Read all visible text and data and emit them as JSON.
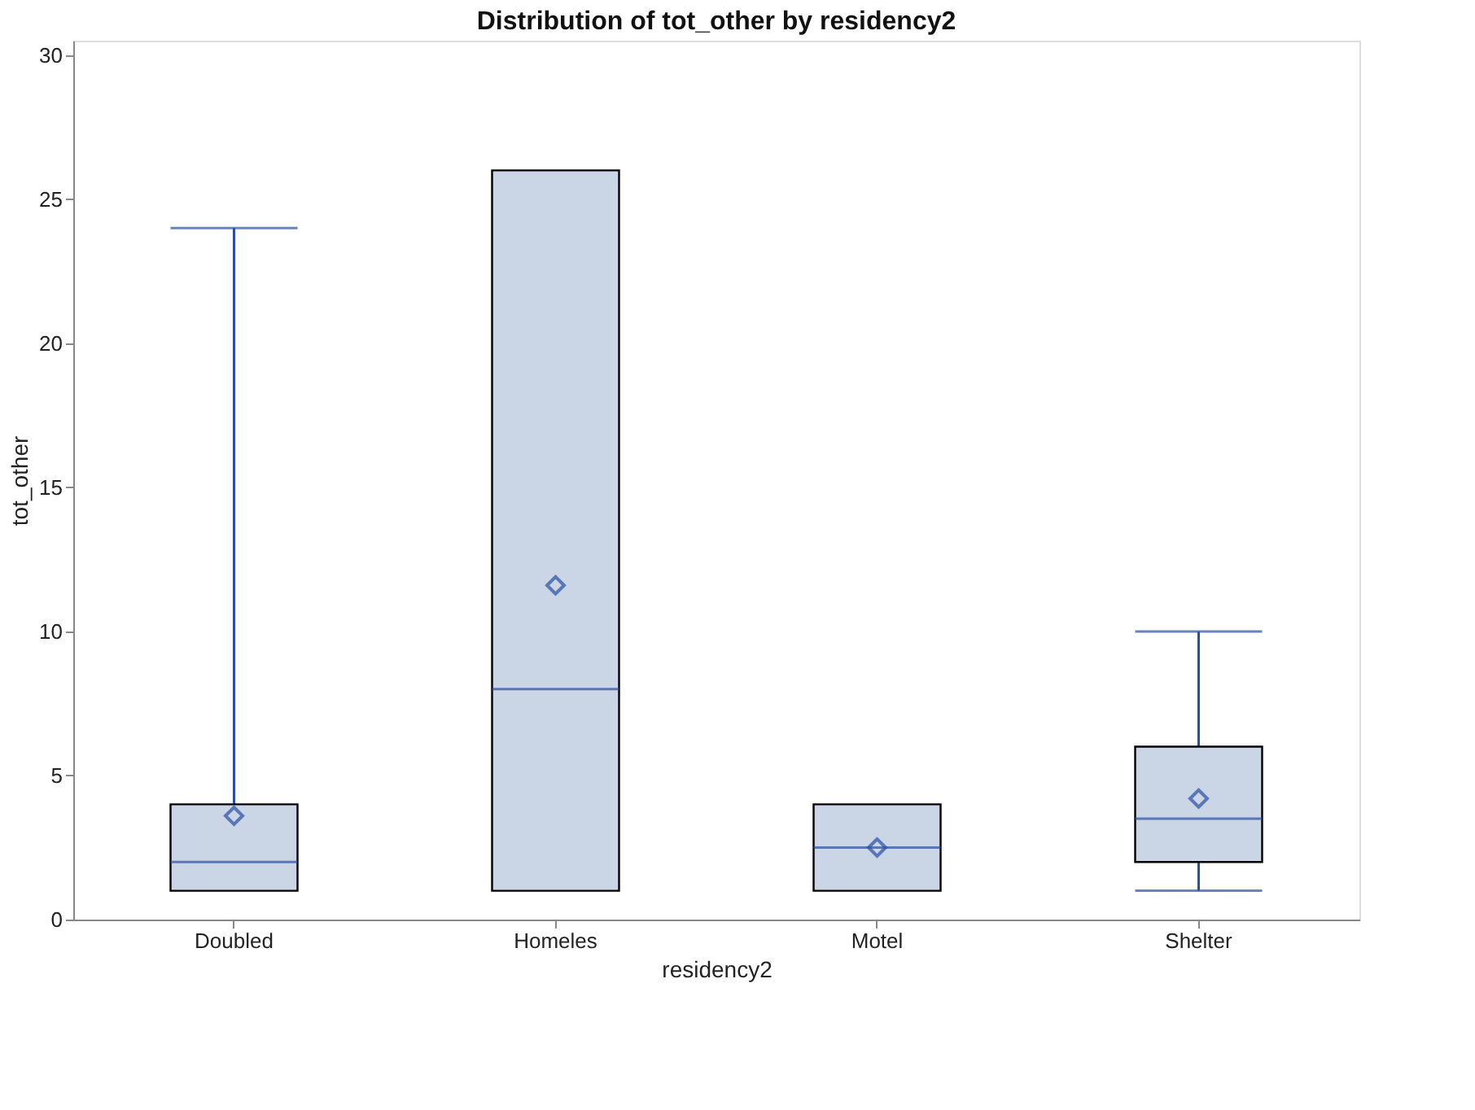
{
  "chart_data": {
    "type": "box",
    "title": "Distribution of tot_other by residency2",
    "xlabel": "residency2",
    "ylabel": "tot_other",
    "categories": [
      "Doubled",
      "Homeles",
      "Motel",
      "Shelter"
    ],
    "color": "#cad5e5",
    "boxes": [
      {
        "low": 1,
        "q1": 1,
        "median": 2,
        "q3": 4,
        "high": 24,
        "mean": 3.6
      },
      {
        "low": 1,
        "q1": 1,
        "median": 8,
        "q3": 26,
        "high": 26,
        "mean": 11.6
      },
      {
        "low": 1,
        "q1": 1,
        "median": 2.5,
        "q3": 4,
        "high": 4,
        "mean": 2.5
      },
      {
        "low": 1,
        "q1": 2,
        "median": 3.5,
        "q3": 6,
        "high": 10,
        "mean": 4.2
      }
    ],
    "ylim": [
      0,
      30.5
    ],
    "yticks": [
      0,
      5,
      10,
      15,
      20,
      25,
      30
    ],
    "grid": false,
    "marker": "diamond"
  }
}
